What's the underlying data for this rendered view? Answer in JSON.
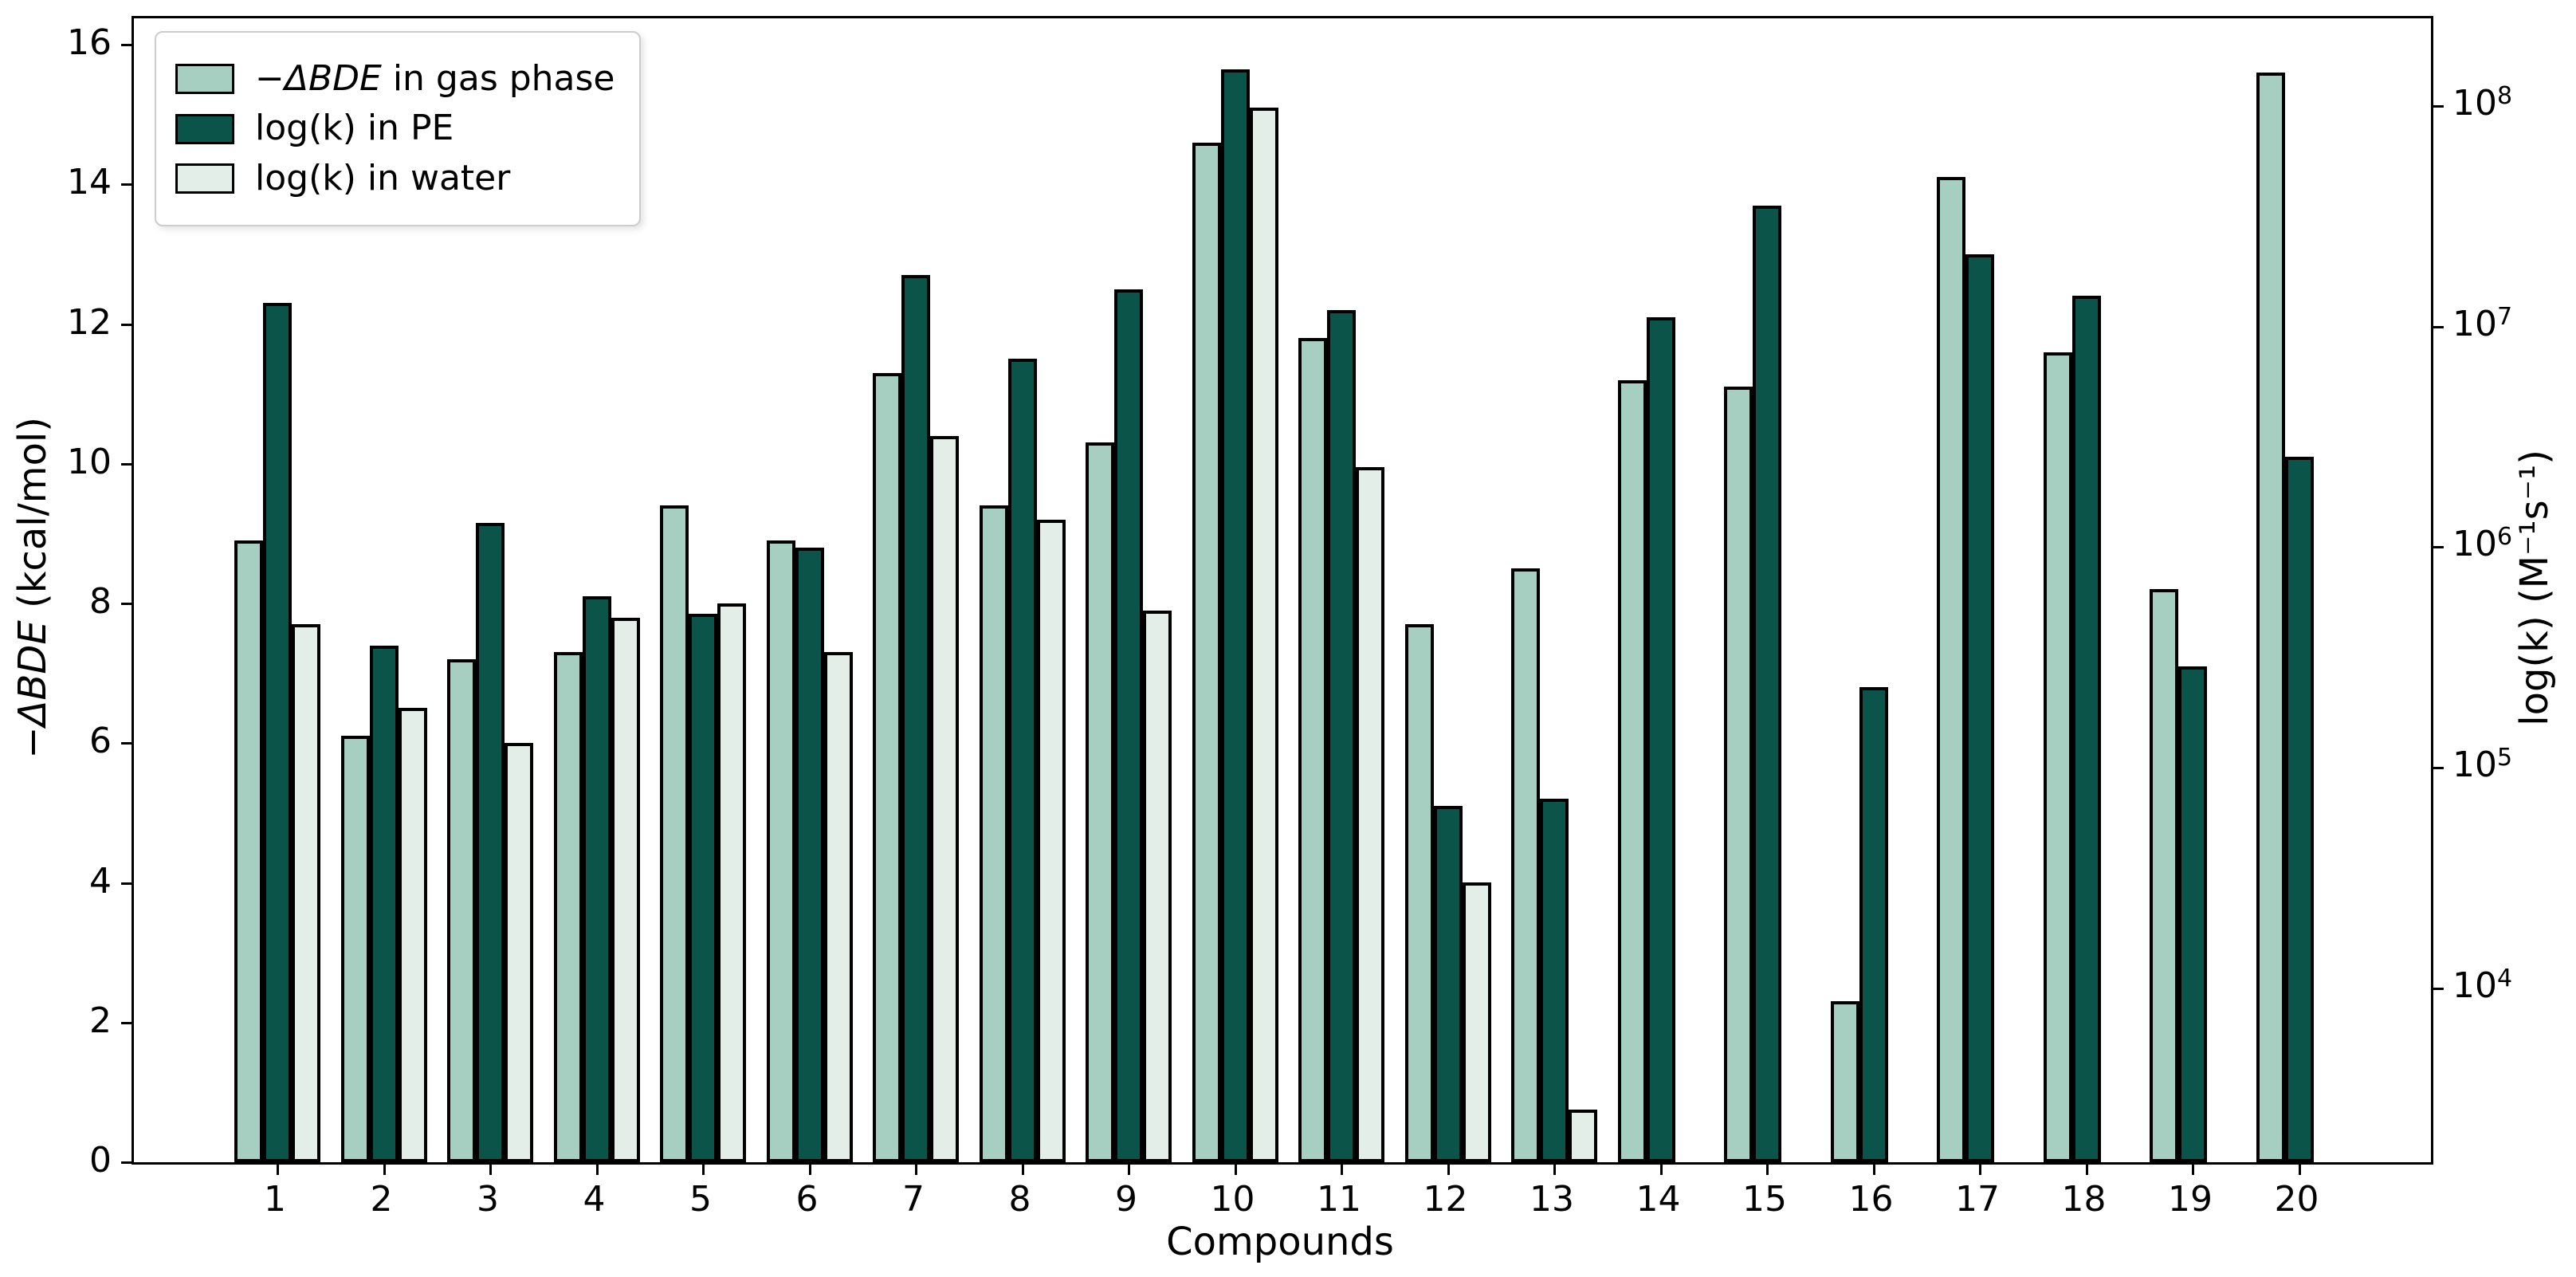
{
  "chart_data": {
    "type": "bar",
    "title": "",
    "xlabel": "Compounds",
    "ylabel_left_parts": [
      {
        "text": "−ΔBDE",
        "italic": true
      },
      {
        "text": " (kcal/mol)",
        "italic": false
      }
    ],
    "ylabel_right_parts": [
      {
        "text": "log(k) (M⁻¹s⁻¹)",
        "italic": false
      }
    ],
    "categories": [
      "1",
      "2",
      "3",
      "4",
      "5",
      "6",
      "7",
      "8",
      "9",
      "10",
      "11",
      "12",
      "13",
      "14",
      "15",
      "16",
      "17",
      "18",
      "19",
      "20"
    ],
    "left_axis": {
      "ticks": [
        "0",
        "2",
        "4",
        "6",
        "8",
        "10",
        "12",
        "14",
        "16"
      ],
      "tick_values": [
        0,
        2,
        4,
        6,
        8,
        10,
        12,
        14,
        16
      ],
      "ylim": [
        0,
        16.38
      ],
      "units": "kcal/mol"
    },
    "right_axis": {
      "scale": "log",
      "ticks": [
        {
          "base": "10",
          "exp": "8",
          "position_left_units": 15.12
        },
        {
          "base": "10",
          "exp": "7",
          "position_left_units": 11.96
        },
        {
          "base": "10",
          "exp": "6",
          "position_left_units": 8.81
        },
        {
          "base": "10",
          "exp": "5",
          "position_left_units": 5.65
        },
        {
          "base": "10",
          "exp": "4",
          "position_left_units": 2.49
        }
      ],
      "units": "M⁻¹s⁻¹"
    },
    "series": [
      {
        "key": "gas",
        "label_parts": [
          {
            "text": "−ΔBDE",
            "italic": true
          },
          {
            "text": " in gas phase",
            "italic": false
          }
        ],
        "color": "#a7cfc1",
        "axis": "left",
        "values": [
          8.9,
          6.1,
          7.2,
          7.3,
          9.4,
          8.9,
          11.3,
          9.4,
          10.3,
          14.6,
          11.8,
          7.7,
          8.5,
          11.2,
          11.1,
          2.3,
          14.1,
          11.6,
          8.2,
          15.6
        ]
      },
      {
        "key": "pe",
        "label_parts": [
          {
            "text": "log(k) in PE",
            "italic": false
          }
        ],
        "color": "#0b5449",
        "axis": "right",
        "values": [
          12.3,
          7.4,
          9.15,
          8.1,
          7.85,
          8.8,
          12.7,
          11.5,
          12.5,
          15.65,
          12.2,
          5.1,
          5.2,
          12.1,
          13.7,
          6.8,
          13.0,
          12.4,
          7.1,
          10.1
        ],
        "log10_k_approx": [
          7.1,
          5.55,
          6.1,
          5.75,
          5.7,
          6.0,
          7.2,
          6.85,
          7.15,
          8.15,
          7.05,
          4.8,
          4.85,
          7.05,
          7.55,
          5.35,
          7.3,
          7.15,
          5.45,
          6.4
        ]
      },
      {
        "key": "water",
        "label_parts": [
          {
            "text": "log(k) in water",
            "italic": false
          }
        ],
        "color": "#e4eee9",
        "axis": "right",
        "values": [
          7.7,
          6.5,
          6.0,
          7.8,
          8.0,
          7.3,
          10.4,
          9.2,
          7.9,
          15.1,
          9.95,
          4.0,
          0.75,
          null,
          null,
          null,
          null,
          null,
          null,
          null
        ],
        "log10_k_approx": [
          5.65,
          5.25,
          5.1,
          5.7,
          5.75,
          5.5,
          6.5,
          6.1,
          5.7,
          8.0,
          6.35,
          4.5,
          3.45,
          null,
          null,
          null,
          null,
          null,
          null,
          null
        ]
      }
    ],
    "legend_position": "upper left",
    "grid": false,
    "colors": {
      "bar_edge": "#000000",
      "background": "#ffffff",
      "legend_border": "#cccccc"
    }
  }
}
